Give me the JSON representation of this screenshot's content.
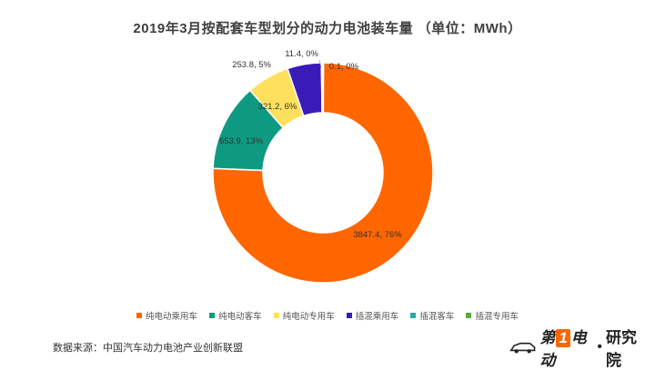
{
  "title": "2019年3月按配套车型划分的动力电池装车量    （单位：MWh）",
  "source": "数据来源：中国汽车动力电池产业创新联盟",
  "brand": {
    "part1": "第",
    "num": "1",
    "part2": "电动",
    "sub": "研究院"
  },
  "chart_data": {
    "type": "pie",
    "donut": true,
    "title": "2019年3月按配套车型划分的动力电池装车量    （单位：MWh）",
    "legend_position": "bottom",
    "categories": [
      "纯电动乘用车",
      "纯电动客车",
      "纯电动专用车",
      "插混乘用车",
      "插混客车",
      "插混专用车"
    ],
    "values": [
      3847.4,
      653.9,
      321.2,
      253.8,
      11.4,
      0.1
    ],
    "data_labels": [
      "3847.4, 76%",
      "653.9, 13%",
      "321.2, 6%",
      "253.8, 5%",
      "11.4, 0%",
      "0.1, 0%"
    ],
    "colors": [
      "#FF6600",
      "#0E9A81",
      "#FFE05C",
      "#3B1BB8",
      "#2BA8A8",
      "#5BAA3A"
    ]
  }
}
